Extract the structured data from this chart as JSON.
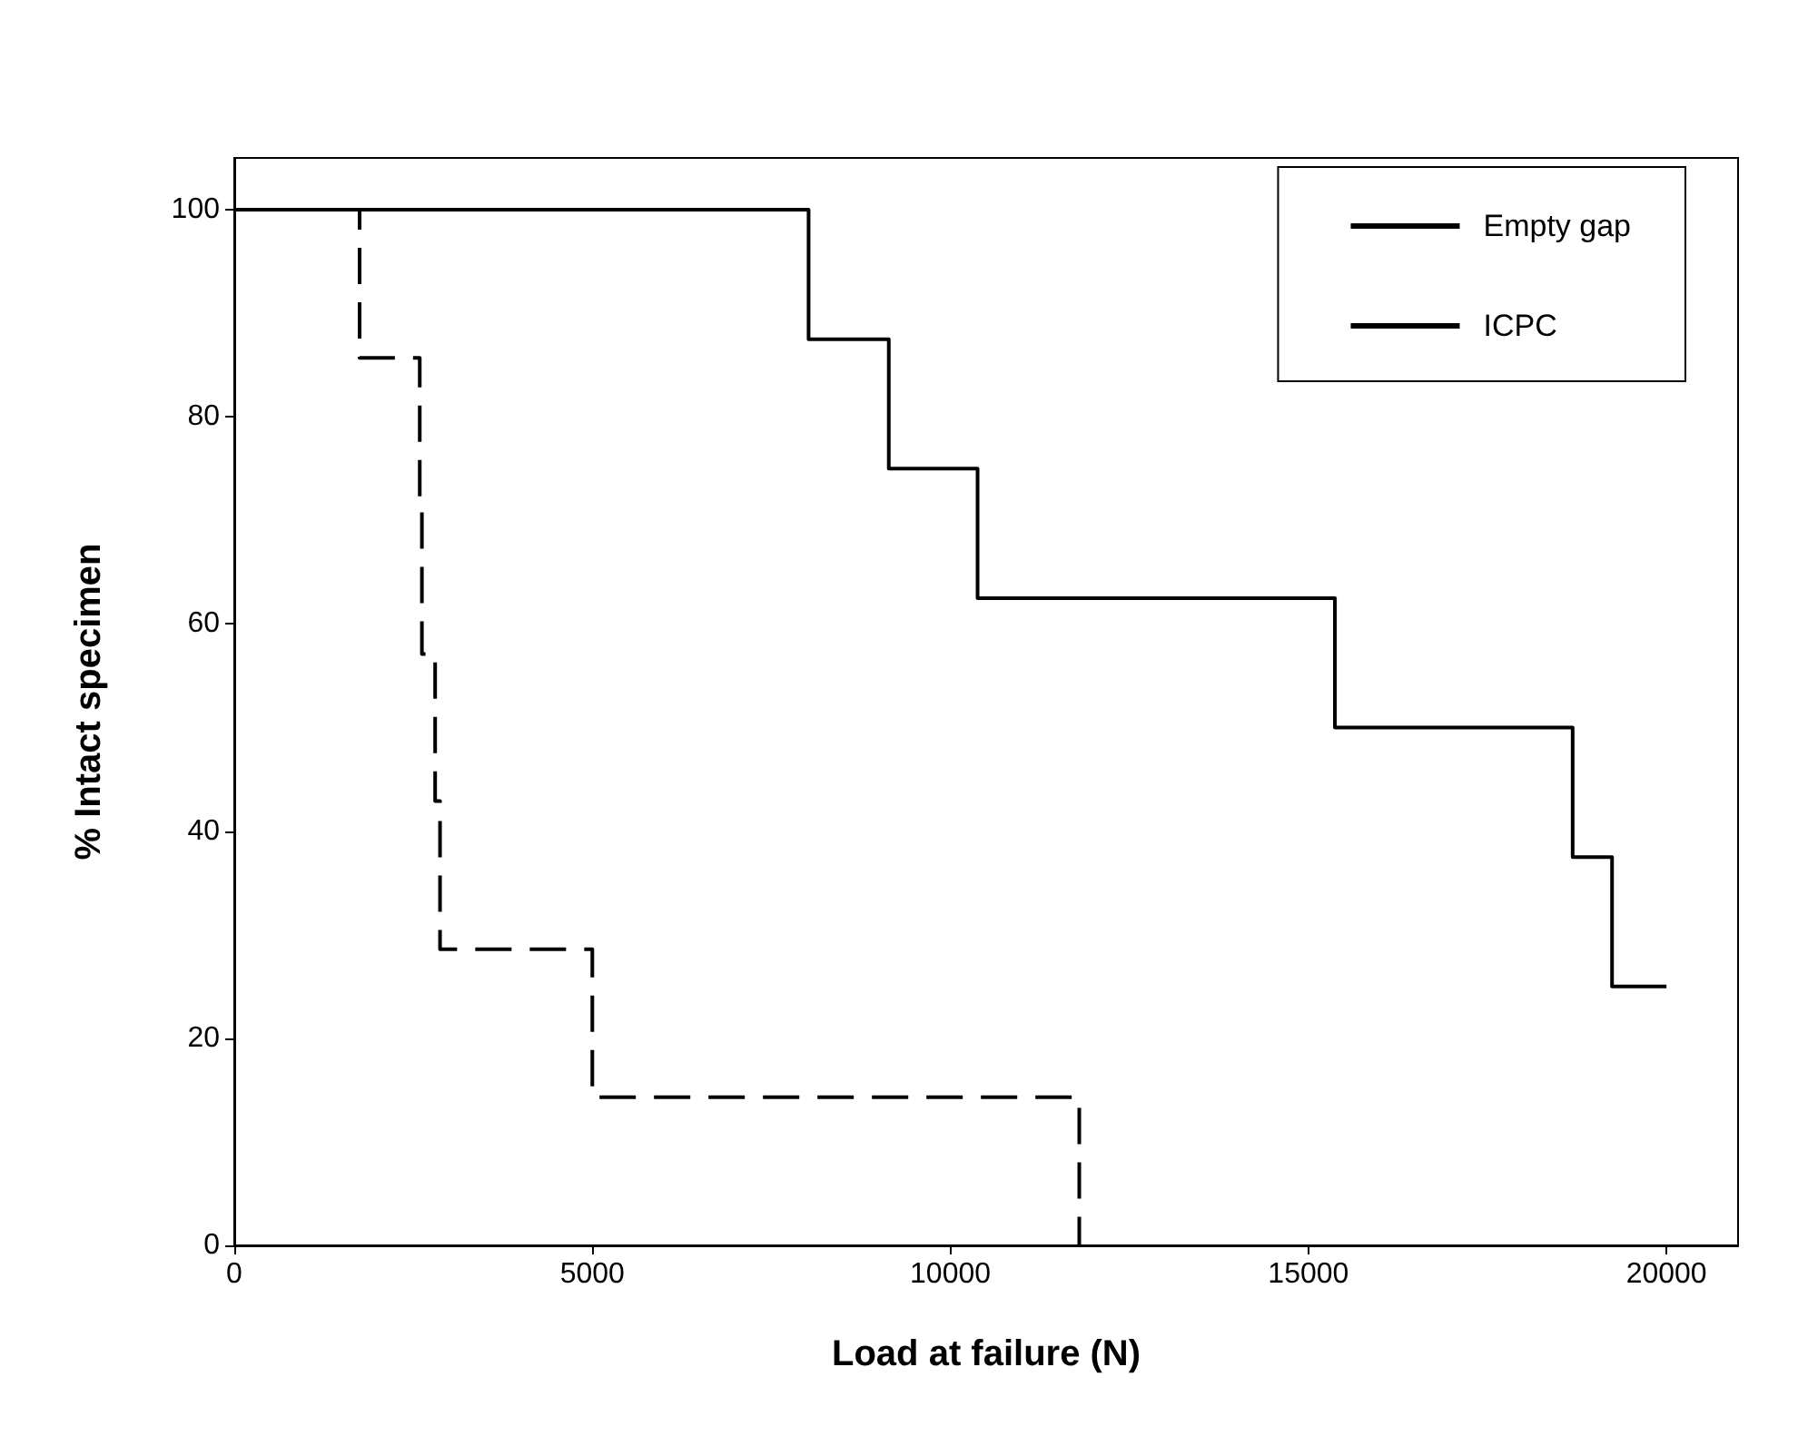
{
  "chart_data": {
    "type": "step",
    "xlabel": "Load at failure (N)",
    "ylabel": "% Intact specimen",
    "xlim": [
      0,
      21000
    ],
    "ylim": [
      0,
      105
    ],
    "xticks": [
      0,
      5000,
      10000,
      15000,
      20000
    ],
    "yticks": [
      0,
      20,
      40,
      60,
      80,
      100
    ],
    "grid": false,
    "legend": "top right",
    "marker": "none",
    "series": [
      {
        "name": "Empty gap",
        "color": "#000000",
        "line_style": "dashed",
        "x": [
          0,
          1750,
          2590,
          2620,
          2805,
          2873,
          5000,
          11800
        ],
        "values": [
          100,
          85.7,
          71.4,
          57.1,
          42.9,
          28.6,
          14.3,
          0
        ]
      },
      {
        "name": "ICPC",
        "color": "#000000",
        "line_style": "solid",
        "x": [
          0,
          8020,
          9140,
          10380,
          15370,
          18690,
          19240,
          20000
        ],
        "values": [
          100,
          87.5,
          75,
          62.5,
          50,
          37.5,
          25,
          25
        ]
      }
    ]
  }
}
